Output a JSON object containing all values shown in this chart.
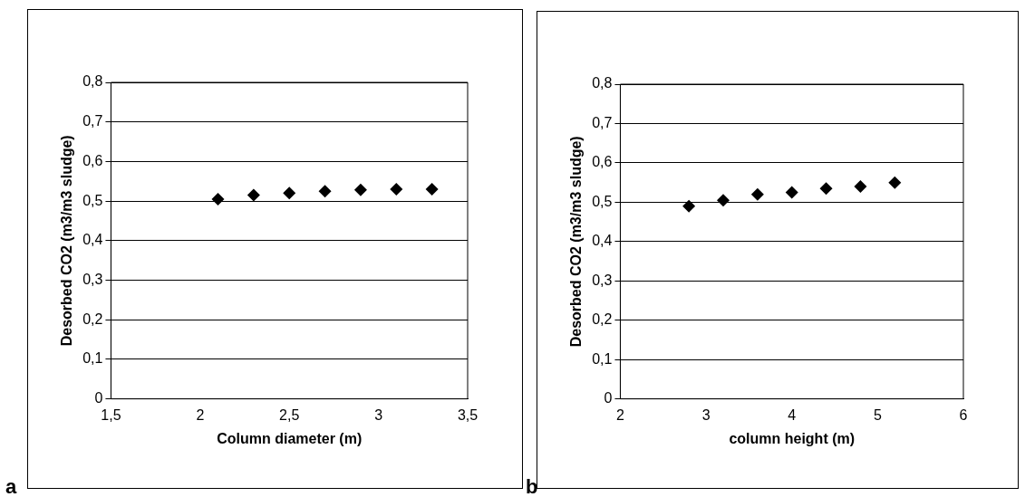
{
  "chart_data": [
    {
      "type": "scatter",
      "xlabel": "Column diameter (m)",
      "ylabel": "Desorbed CO2 (m3/m3 sludge)",
      "annotations": [
        "a"
      ],
      "marker": "diamond",
      "grid": "y",
      "legend": false,
      "x": [
        2.1,
        2.3,
        2.5,
        2.7,
        2.9,
        3.1,
        3.3
      ],
      "series": [
        {
          "color": "#000000",
          "values": [
            0.505,
            0.515,
            0.52,
            0.525,
            0.528,
            0.53,
            0.53
          ]
        }
      ],
      "xlim": [
        1.5,
        3.5
      ],
      "xticks": [
        {
          "value": 1.5,
          "label": "1,5"
        },
        2,
        {
          "value": 2.5,
          "label": "2,5"
        },
        3,
        {
          "value": 3.5,
          "label": "3,5"
        }
      ],
      "ylim": [
        0,
        0.8
      ],
      "yticks": [
        0,
        {
          "value": 0.1,
          "label": "0,1"
        },
        {
          "value": 0.2,
          "label": "0,2"
        },
        {
          "value": 0.3,
          "label": "0,3"
        },
        {
          "value": 0.4,
          "label": "0,4"
        },
        {
          "value": 0.5,
          "label": "0,5"
        },
        {
          "value": 0.6,
          "label": "0,6"
        },
        {
          "value": 0.7,
          "label": "0,7"
        },
        {
          "value": 0.8,
          "label": "0,8"
        }
      ]
    },
    {
      "type": "scatter",
      "xlabel": "column height (m)",
      "ylabel": "Desorbed CO2 (m3/m3 sludge)",
      "annotations": [
        "b"
      ],
      "marker": "diamond",
      "grid": "y",
      "legend": false,
      "x": [
        2.8,
        3.2,
        3.6,
        4.0,
        4.4,
        4.8,
        5.2
      ],
      "series": [
        {
          "color": "#000000",
          "values": [
            0.49,
            0.505,
            0.52,
            0.525,
            0.535,
            0.54,
            0.55
          ]
        }
      ],
      "xlim": [
        2,
        6
      ],
      "xticks": [
        2,
        3,
        4,
        5,
        6
      ],
      "ylim": [
        0,
        0.8
      ],
      "yticks": [
        0,
        {
          "value": 0.1,
          "label": "0,1"
        },
        {
          "value": 0.2,
          "label": "0,2"
        },
        {
          "value": 0.3,
          "label": "0,3"
        },
        {
          "value": 0.4,
          "label": "0,4"
        },
        {
          "value": 0.5,
          "label": "0,5"
        },
        {
          "value": 0.6,
          "label": "0,6"
        },
        {
          "value": 0.7,
          "label": "0,7"
        },
        {
          "value": 0.8,
          "label": "0,8"
        }
      ]
    }
  ]
}
